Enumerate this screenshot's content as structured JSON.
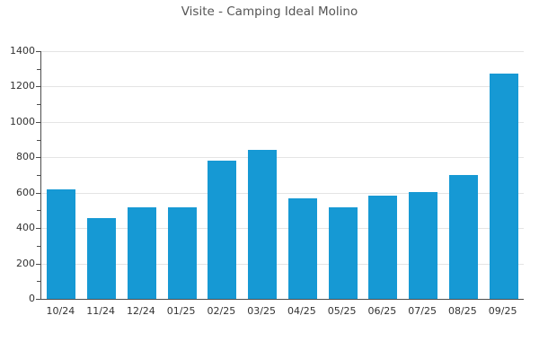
{
  "chart": {
    "title": "Visite - Camping Ideal Molino",
    "bar_color": "#1699d4",
    "grid_color": "#e4e4e4",
    "axis_color": "#4d4d4d",
    "label_color": "#333333",
    "title_color": "#555555"
  },
  "chart_data": {
    "type": "bar",
    "title": "Visite - Camping Ideal Molino",
    "categories": [
      "10/24",
      "11/24",
      "12/24",
      "01/25",
      "02/25",
      "03/25",
      "04/25",
      "05/25",
      "06/25",
      "07/25",
      "08/25",
      "09/25"
    ],
    "values": [
      620,
      455,
      515,
      515,
      780,
      840,
      570,
      515,
      585,
      605,
      700,
      1275
    ],
    "xlabel": "",
    "ylabel": "",
    "ylim": [
      0,
      1400
    ],
    "ytick_step": 200,
    "y_minor_tick_step": 100,
    "grid": true,
    "legend": false
  }
}
